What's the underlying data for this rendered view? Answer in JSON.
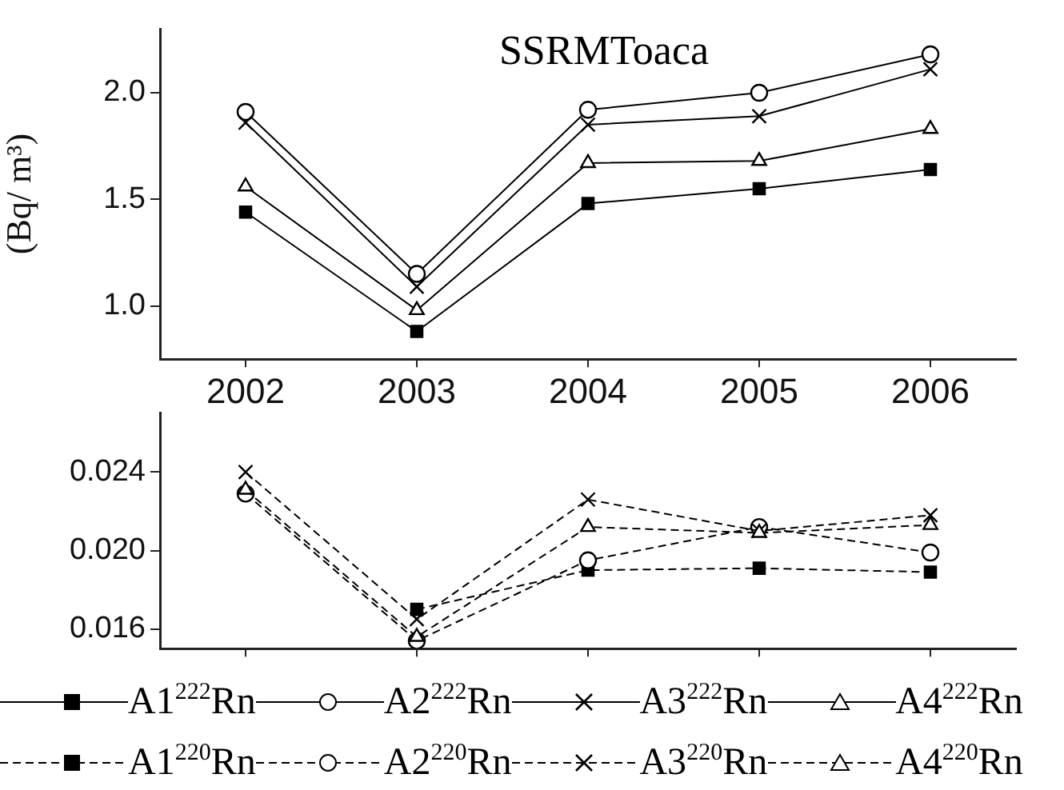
{
  "chart_data": [
    {
      "type": "line",
      "title": "SSRMToaca",
      "ylabel": "(Bq/ m³)",
      "categories": [
        "2002",
        "2003",
        "2004",
        "2005",
        "2006"
      ],
      "ylim": [
        0.75,
        2.3
      ],
      "yticks": [
        {
          "value": 1.0,
          "label": "1.0"
        },
        {
          "value": 1.5,
          "label": "1.5"
        },
        {
          "value": 2.0,
          "label": "2.0"
        }
      ],
      "grid": false,
      "legend": "bottom",
      "line_style": "solid",
      "series": [
        {
          "name": "A1$^{222}$Rn",
          "color": "#000000",
          "marker": "square",
          "values": [
            1.44,
            0.88,
            1.48,
            1.55,
            1.64
          ]
        },
        {
          "name": "A2$^{222}$Rn",
          "color": "#000000",
          "marker": "circle",
          "values": [
            1.91,
            1.15,
            1.92,
            2.0,
            2.18
          ]
        },
        {
          "name": "A3$^{222}$Rn",
          "color": "#000000",
          "marker": "cross",
          "values": [
            1.86,
            1.09,
            1.85,
            1.89,
            2.11
          ]
        },
        {
          "name": "A4$^{222}$Rn",
          "color": "#000000",
          "marker": "triangle",
          "values": [
            1.56,
            0.98,
            1.67,
            1.68,
            1.83
          ]
        }
      ]
    },
    {
      "type": "line",
      "categories": [
        "2002",
        "2003",
        "2004",
        "2005",
        "2006"
      ],
      "ylim": [
        0.015,
        0.027
      ],
      "yticks": [
        0.016,
        {
          "value": 0.02,
          "label": "0.020"
        },
        0.024
      ],
      "grid": false,
      "legend": "bottom",
      "line_style": "dashed",
      "tick_labels": "y",
      "series": [
        {
          "name": "A1$^{220}$Rn",
          "color": "#000000",
          "marker": "square",
          "values": [
            null,
            0.017,
            0.019,
            0.0191,
            0.0189
          ]
        },
        {
          "name": "A2$^{220}$Rn",
          "color": "#000000",
          "marker": "circle",
          "values": [
            0.0229,
            0.0154,
            0.0195,
            0.0212,
            0.0199
          ]
        },
        {
          "name": "A3$^{220}$Rn",
          "color": "#000000",
          "marker": "cross",
          "values": [
            0.024,
            0.0165,
            0.0226,
            0.021,
            0.0218
          ]
        },
        {
          "name": "A4$^{220}$Rn",
          "color": "#000000",
          "marker": "triangle",
          "values": [
            0.0231,
            0.0156,
            0.0212,
            0.0209,
            0.0213
          ]
        }
      ]
    }
  ]
}
